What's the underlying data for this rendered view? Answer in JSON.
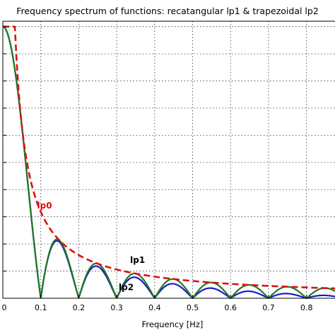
{
  "chart_data": {
    "type": "line",
    "title": "Frequency spectrum of functions: recatangular lp1 & trapezoidal lp2",
    "xlabel": "Frequency [Hz]",
    "ylabel": "",
    "xlim": [
      0,
      0.875
    ],
    "ylim": [
      0,
      1.02
    ],
    "x_ticks": [
      "0",
      "0.1",
      "0.2",
      "0.3",
      "0.4",
      "0.5",
      "0.6",
      "0.7",
      "0.8"
    ],
    "x_tick_values": [
      0,
      0.1,
      0.2,
      0.3,
      0.4,
      0.5,
      0.6,
      0.7,
      0.8
    ],
    "y_gridlines": [
      0,
      0.1,
      0.2,
      0.3,
      0.4,
      0.5,
      0.6,
      0.7,
      0.8,
      0.9,
      1.0
    ],
    "grid": true,
    "null_spacing_hz": 0.1,
    "series": [
      {
        "name": "lp0",
        "color": "#dd1111",
        "style": "dashed",
        "description_points": {
          "x": [
            0,
            0.03,
            0.05,
            0.1,
            0.15,
            0.2,
            0.3,
            0.4,
            0.5,
            0.6,
            0.7,
            0.8,
            0.875
          ],
          "y": [
            1.0,
            1.0,
            0.58,
            0.318,
            0.212,
            0.159,
            0.106,
            0.08,
            0.064,
            0.053,
            0.045,
            0.04,
            0.036
          ]
        }
      },
      {
        "name": "lp1",
        "color": "#1f7a1f",
        "style": "solid",
        "description_points": {
          "x": [
            0,
            0.05,
            0.1,
            0.15,
            0.2,
            0.25,
            0.3,
            0.35,
            0.4,
            0.45,
            0.5,
            0.55,
            0.6,
            0.65,
            0.7,
            0.75,
            0.8,
            0.85
          ],
          "y": [
            1.0,
            0.637,
            0,
            0.212,
            0,
            0.127,
            0,
            0.091,
            0,
            0.071,
            0,
            0.058,
            0,
            0.049,
            0,
            0.042,
            0,
            0.037
          ]
        }
      },
      {
        "name": "lp2",
        "color": "#1a1acc",
        "style": "solid",
        "description_points": {
          "x": [
            0,
            0.05,
            0.1,
            0.15,
            0.2,
            0.25,
            0.3,
            0.35,
            0.4,
            0.45,
            0.5,
            0.55,
            0.6,
            0.65,
            0.7,
            0.75,
            0.8,
            0.85
          ],
          "y": [
            1.0,
            0.63,
            0,
            0.205,
            0,
            0.118,
            0,
            0.08,
            0,
            0.058,
            0,
            0.044,
            0,
            0.034,
            0,
            0.027,
            0,
            0.022
          ]
        }
      }
    ],
    "annotations": [
      {
        "text": "lp0",
        "series": "lp0"
      },
      {
        "text": "lp1",
        "series": "lp1"
      },
      {
        "text": "lp2",
        "series": "lp2"
      }
    ]
  }
}
